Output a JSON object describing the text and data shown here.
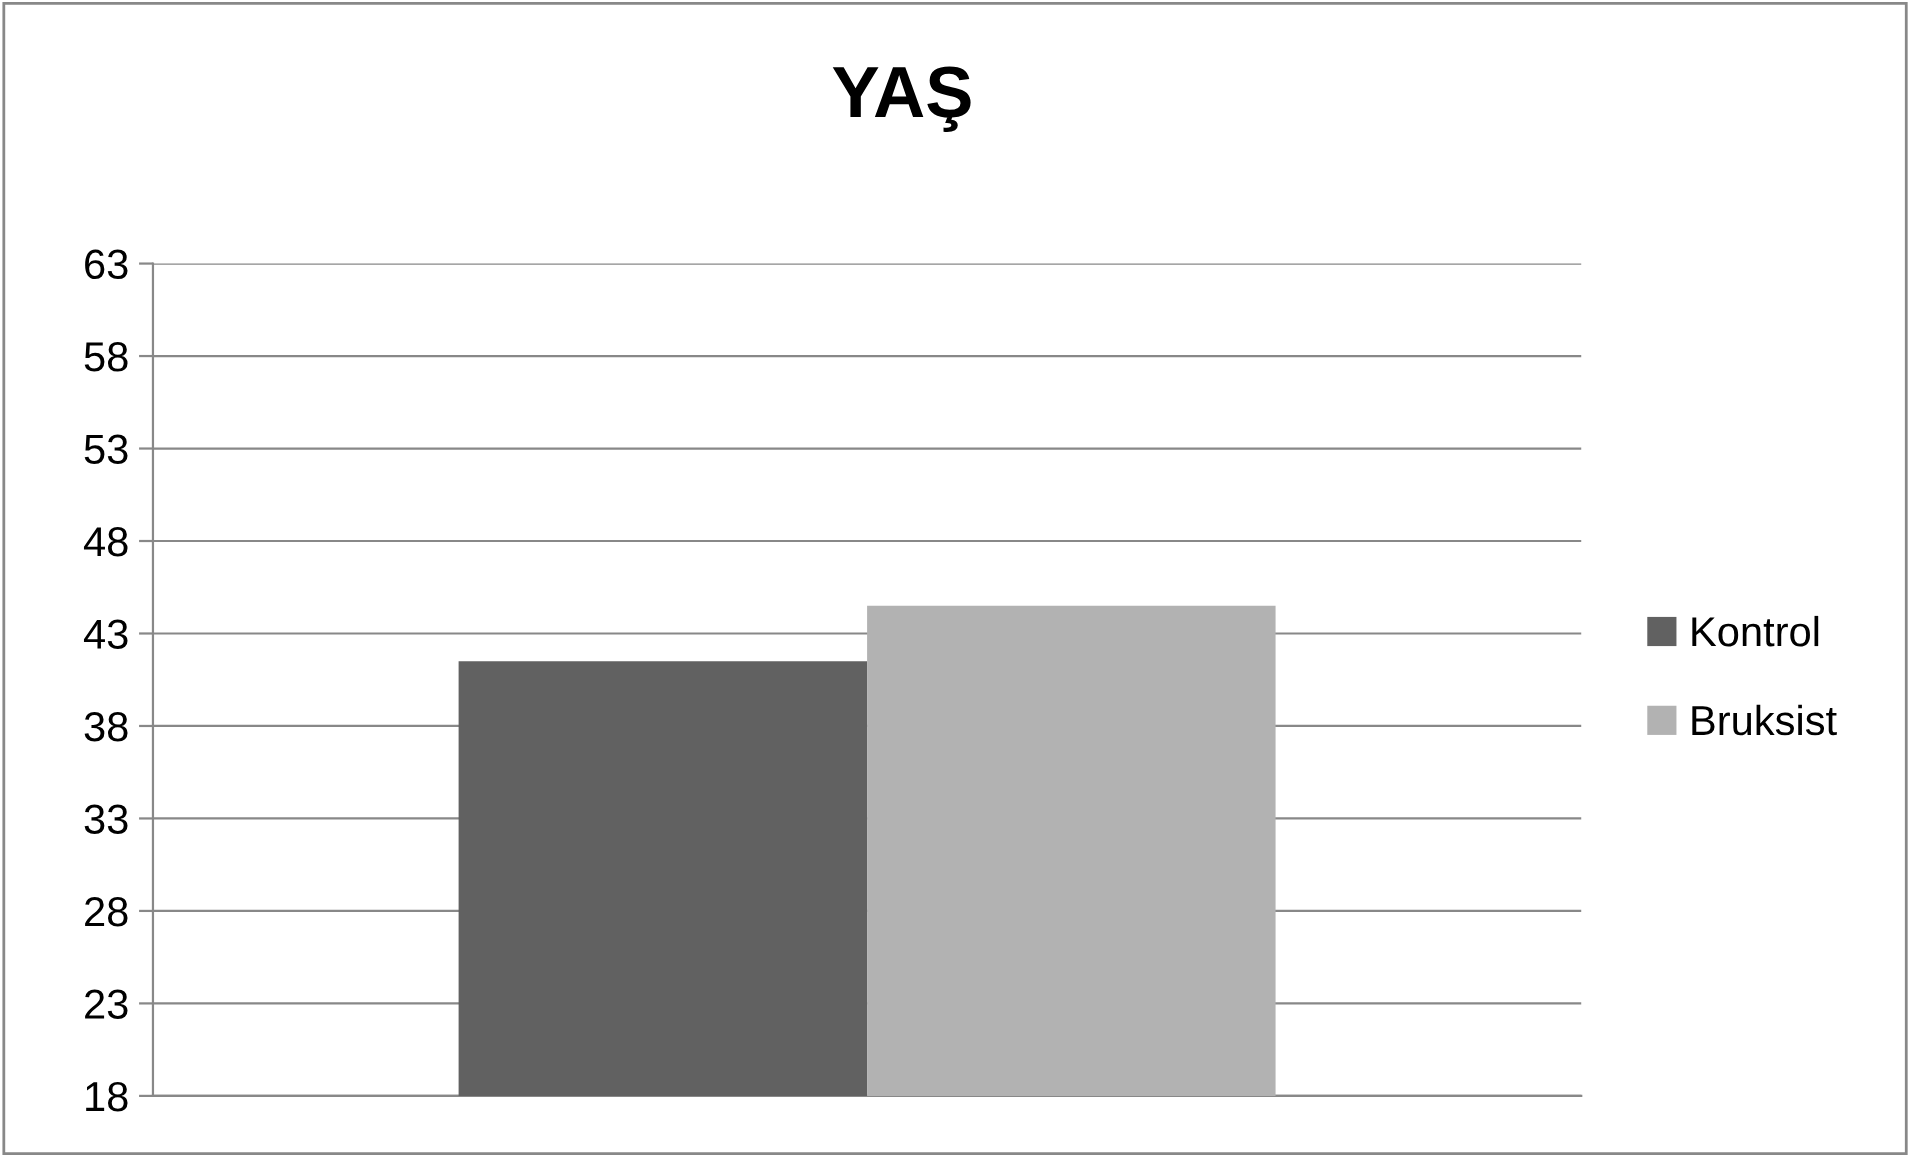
{
  "chart_data": {
    "type": "bar",
    "title": "YAŞ",
    "categories": [
      null
    ],
    "series": [
      {
        "name": "Kontrol",
        "color": "#616161",
        "values": [
          41.5
        ]
      },
      {
        "name": "Bruksist",
        "color": "#b2b2b2",
        "values": [
          44.5
        ]
      }
    ],
    "ylim": [
      18,
      63
    ],
    "yticks": [
      18,
      23,
      28,
      33,
      38,
      43,
      48,
      53,
      58,
      63
    ],
    "grid": "y",
    "legend": "right",
    "tick_labels": "y"
  }
}
